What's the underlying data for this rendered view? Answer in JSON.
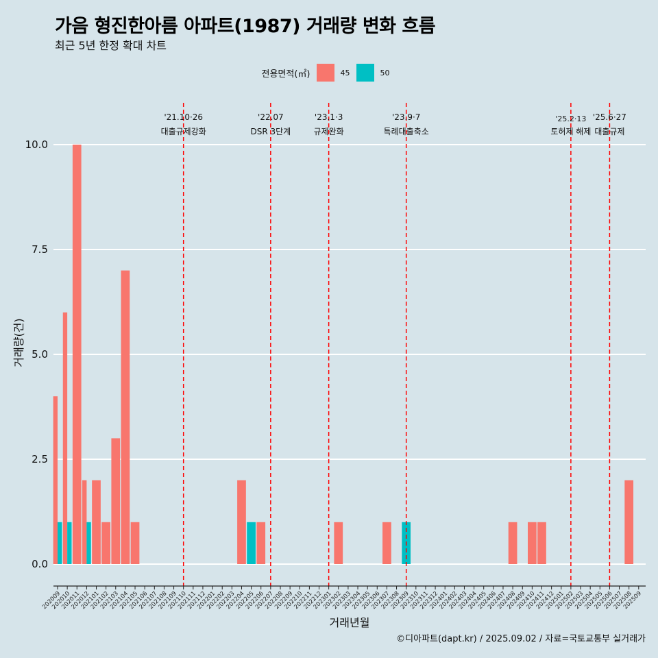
{
  "title": "가음 형진한아름 아파트(1987) 거래량 변화 흐름",
  "subtitle": "최근 5년 한정 확대 차트",
  "legend_title": "전용면적(㎡)",
  "caption": "©디아파트(dapt.kr) / 2025.09.02 / 자료=국토교통부 실거래가",
  "colors": {
    "45": "#f8766d",
    "50": "#00bfc4",
    "background": "#d6e4ea",
    "event_line": "#ff0000"
  },
  "chart_data": {
    "type": "bar",
    "title": "가음 형진한아름 아파트(1987) 거래량 변화 흐름",
    "subtitle": "최근 5년 한정 확대 차트",
    "xlabel": "거래년월",
    "ylabel": "거래량(건)",
    "ylim": [
      0,
      10
    ],
    "yticks": [
      "0.0",
      "2.5",
      "5.0",
      "7.5",
      "10.0"
    ],
    "categories": [
      "202009",
      "202010",
      "202011",
      "202012",
      "202101",
      "202102",
      "202103",
      "202104",
      "202105",
      "202106",
      "202107",
      "202108",
      "202109",
      "202110",
      "202111",
      "202112",
      "202201",
      "202202",
      "202203",
      "202204",
      "202205",
      "202206",
      "202207",
      "202208",
      "202209",
      "202210",
      "202211",
      "202212",
      "202301",
      "202302",
      "202303",
      "202304",
      "202305",
      "202306",
      "202307",
      "202308",
      "202309",
      "202310",
      "202311",
      "202312",
      "202401",
      "202402",
      "202403",
      "202404",
      "202405",
      "202406",
      "202407",
      "202408",
      "202409",
      "202410",
      "202411",
      "202412",
      "202501",
      "202502",
      "202503",
      "202504",
      "202505",
      "202506",
      "202507",
      "202508",
      "202509"
    ],
    "series": [
      {
        "name": "45",
        "values": [
          4,
          6,
          10,
          2,
          2,
          1,
          3,
          7,
          1,
          0,
          0,
          0,
          0,
          0,
          0,
          0,
          0,
          0,
          0,
          2,
          0,
          1,
          0,
          0,
          0,
          0,
          0,
          0,
          0,
          1,
          0,
          0,
          0,
          0,
          1,
          0,
          0,
          0,
          0,
          0,
          0,
          0,
          0,
          0,
          0,
          0,
          0,
          1,
          0,
          1,
          1,
          0,
          0,
          0,
          0,
          0,
          0,
          0,
          0,
          2,
          0
        ]
      },
      {
        "name": "50",
        "values": [
          1,
          1,
          0,
          1,
          0,
          0,
          0,
          0,
          0,
          0,
          0,
          0,
          0,
          0,
          0,
          0,
          0,
          0,
          0,
          0,
          1,
          0,
          0,
          0,
          0,
          0,
          0,
          0,
          0,
          0,
          0,
          0,
          0,
          0,
          0,
          0,
          1,
          0,
          0,
          0,
          0,
          0,
          0,
          0,
          0,
          0,
          0,
          0,
          0,
          0,
          0,
          0,
          0,
          0,
          0,
          0,
          0,
          0,
          0,
          0,
          0
        ]
      }
    ],
    "legend_position": "top",
    "grid": "horizontal",
    "events": [
      {
        "date": "202110",
        "label": "'21.10·26",
        "desc": "대출규제강화"
      },
      {
        "date": "202207",
        "label": "'22.07",
        "desc": "DSR 3단계"
      },
      {
        "date": "202301",
        "label": "'23.1·3",
        "desc": "규제완화"
      },
      {
        "date": "202309",
        "label": "'23.9·7",
        "desc": "특례대출축소"
      },
      {
        "date": "202502",
        "label": "'25.2·13",
        "desc": "토허제 해제"
      },
      {
        "date": "202506",
        "label": "'25.6·27",
        "desc": "대출규제"
      }
    ]
  }
}
